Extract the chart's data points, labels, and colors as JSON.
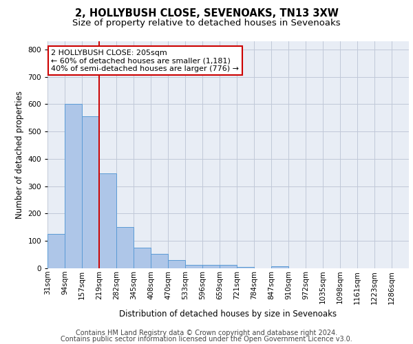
{
  "title1": "2, HOLLYBUSH CLOSE, SEVENOAKS, TN13 3XW",
  "title2": "Size of property relative to detached houses in Sevenoaks",
  "xlabel": "Distribution of detached houses by size in Sevenoaks",
  "ylabel": "Number of detached properties",
  "categories": [
    "31sqm",
    "94sqm",
    "157sqm",
    "219sqm",
    "282sqm",
    "345sqm",
    "408sqm",
    "470sqm",
    "533sqm",
    "596sqm",
    "659sqm",
    "721sqm",
    "784sqm",
    "847sqm",
    "910sqm",
    "972sqm",
    "1035sqm",
    "1098sqm",
    "1161sqm",
    "1223sqm",
    "1286sqm"
  ],
  "bar_heights": [
    125,
    600,
    555,
    348,
    150,
    75,
    52,
    30,
    13,
    12,
    12,
    6,
    0,
    8,
    0,
    0,
    0,
    0,
    0,
    0,
    0
  ],
  "bar_color": "#aec6e8",
  "bar_edgecolor": "#5b9bd5",
  "bar_linewidth": 0.7,
  "grid_color": "#c0c8d8",
  "background_color": "#e8edf5",
  "vline_x": 3.0,
  "vline_color": "#cc0000",
  "annotation_text": "2 HOLLYBUSH CLOSE: 205sqm\n← 60% of detached houses are smaller (1,181)\n40% of semi-detached houses are larger (776) →",
  "annotation_box_edgecolor": "#cc0000",
  "annotation_box_facecolor": "#ffffff",
  "footer1": "Contains HM Land Registry data © Crown copyright and database right 2024.",
  "footer2": "Contains public sector information licensed under the Open Government Licence v3.0.",
  "ylim": [
    0,
    830
  ],
  "yticks": [
    0,
    100,
    200,
    300,
    400,
    500,
    600,
    700,
    800
  ],
  "title1_fontsize": 10.5,
  "title2_fontsize": 9.5,
  "xlabel_fontsize": 8.5,
  "ylabel_fontsize": 8.5,
  "tick_fontsize": 7.5,
  "footer_fontsize": 7.0,
  "annotation_fontsize": 8.0
}
